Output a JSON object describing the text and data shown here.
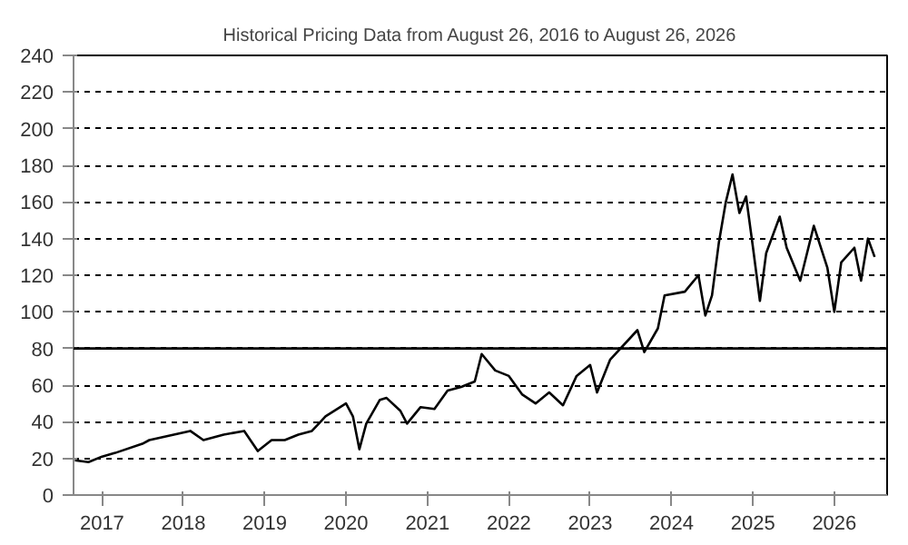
{
  "chart_data": {
    "type": "line",
    "title": "Historical Pricing Data from August 26, 2016 to August 26, 2026",
    "x": [
      "2016-09",
      "2016-11",
      "2017-01",
      "2017-03",
      "2017-07",
      "2017-08",
      "2018-02",
      "2018-04",
      "2018-07",
      "2018-10",
      "2018-12",
      "2019-02",
      "2019-04",
      "2019-06",
      "2019-08",
      "2019-09",
      "2019-10",
      "2020-01",
      "2020-02",
      "2020-03",
      "2020-04",
      "2020-06",
      "2020-07",
      "2020-09",
      "2020-10",
      "2020-12",
      "2021-02",
      "2021-04",
      "2021-06",
      "2021-08",
      "2021-09",
      "2021-11",
      "2022-01",
      "2022-03",
      "2022-05",
      "2022-07",
      "2022-09",
      "2022-11",
      "2023-01",
      "2023-02",
      "2023-04",
      "2023-08",
      "2023-09",
      "2023-11",
      "2023-12",
      "2024-03",
      "2024-05",
      "2024-06",
      "2024-07",
      "2024-08",
      "2024-09",
      "2024-10",
      "2024-11",
      "2024-12",
      "2025-01",
      "2025-02",
      "2025-03",
      "2025-05",
      "2025-06",
      "2025-08",
      "2025-10",
      "2025-12",
      "2026-01",
      "2026-02",
      "2026-04",
      "2026-05",
      "2026-06",
      "2026-07"
    ],
    "series": [
      {
        "color": "#000000",
        "values": [
          19,
          18,
          21,
          23,
          28,
          30,
          35,
          30,
          33,
          35,
          24,
          30,
          30,
          33,
          35,
          39,
          43,
          50,
          43,
          25,
          39,
          52,
          53,
          46,
          39,
          48,
          47,
          57,
          59,
          62,
          77,
          68,
          65,
          55,
          50,
          56,
          49,
          65,
          71,
          56,
          74,
          90,
          78,
          91,
          109,
          111,
          120,
          98,
          109,
          138,
          160,
          175,
          154,
          163,
          135,
          106,
          132,
          152,
          135,
          117,
          147,
          124,
          100,
          127,
          135,
          117,
          140,
          130
        ]
      }
    ],
    "xlim": [
      "2016-08-26",
      "2026-08-26"
    ],
    "xticks": [
      {
        "value": "2017-01-01",
        "label": "2017"
      },
      {
        "value": "2018-01-01",
        "label": "2018"
      },
      {
        "value": "2019-01-01",
        "label": "2019"
      },
      {
        "value": "2020-01-01",
        "label": "2020"
      },
      {
        "value": "2021-01-01",
        "label": "2021"
      },
      {
        "value": "2022-01-01",
        "label": "2022"
      },
      {
        "value": "2023-01-01",
        "label": "2023"
      },
      {
        "value": "2024-01-01",
        "label": "2024"
      },
      {
        "value": "2025-01-01",
        "label": "2025"
      },
      {
        "value": "2026-01-01",
        "label": "2026"
      }
    ],
    "ylim": [
      0,
      240
    ],
    "yticks": [
      0,
      20,
      40,
      60,
      80,
      100,
      120,
      140,
      160,
      180,
      200,
      220,
      240
    ],
    "grid": "y",
    "line_style": "solid",
    "ref_lines": [
      {
        "axis": "y",
        "value": 80,
        "color": "#000000",
        "line_style": "solid"
      }
    ]
  }
}
